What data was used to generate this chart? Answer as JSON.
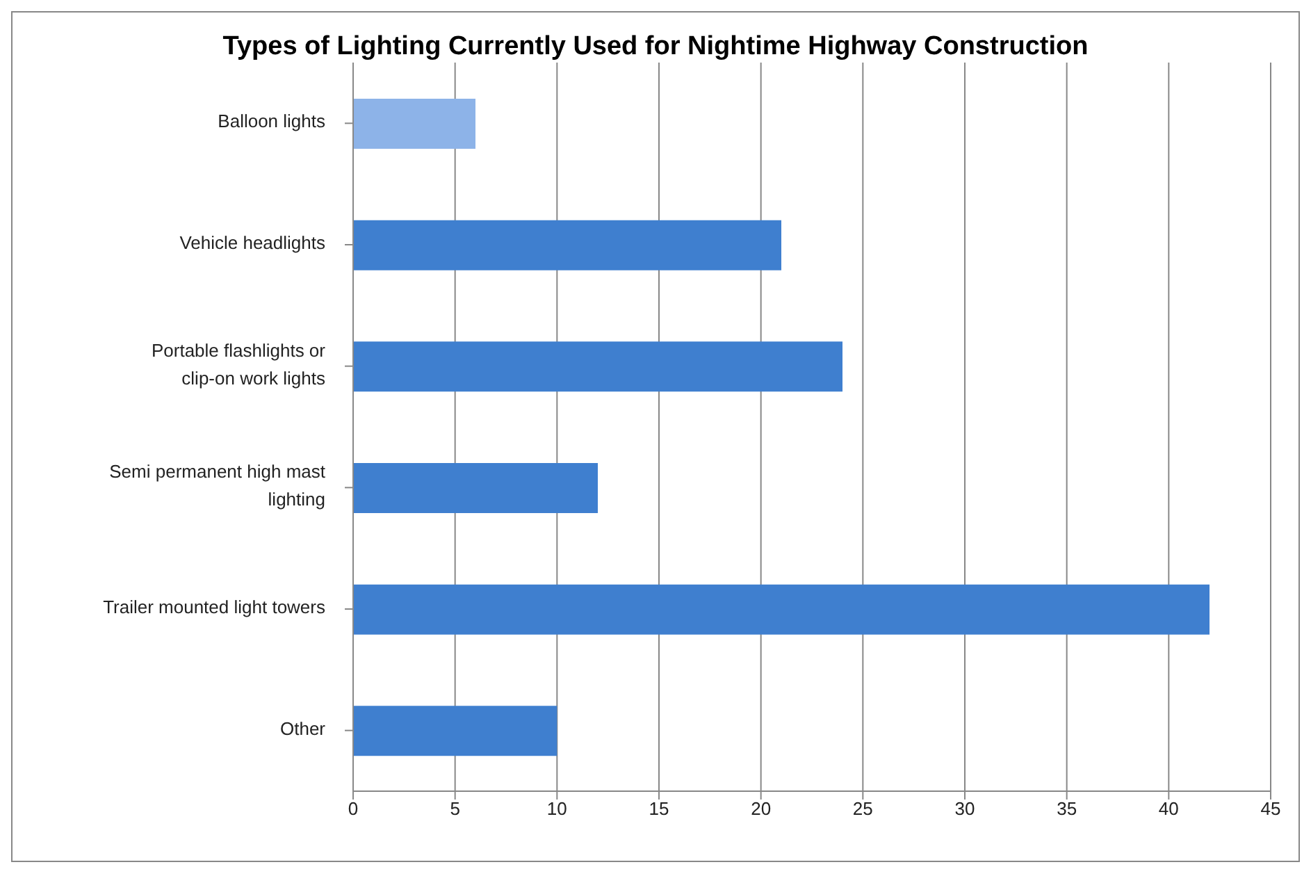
{
  "chart_data": {
    "type": "bar",
    "orientation": "horizontal",
    "title": "Types of Lighting Currently Used for Nightime Highway Construction",
    "categories": [
      "Balloon lights",
      "Vehicle headlights",
      "Portable flashlights or clip-on work lights",
      "Semi permanent high mast lighting",
      "Trailer mounted light towers",
      "Other"
    ],
    "values": [
      6,
      21,
      24,
      12,
      42,
      10
    ],
    "colors": [
      "#8db3e8",
      "#3f7fcf",
      "#3f7fcf",
      "#3f7fcf",
      "#3f7fcf",
      "#3f7fcf"
    ],
    "xlim": [
      0,
      45
    ],
    "xticks": [
      0,
      5,
      10,
      15,
      20,
      25,
      30,
      35,
      40,
      45
    ],
    "grid": "x"
  }
}
